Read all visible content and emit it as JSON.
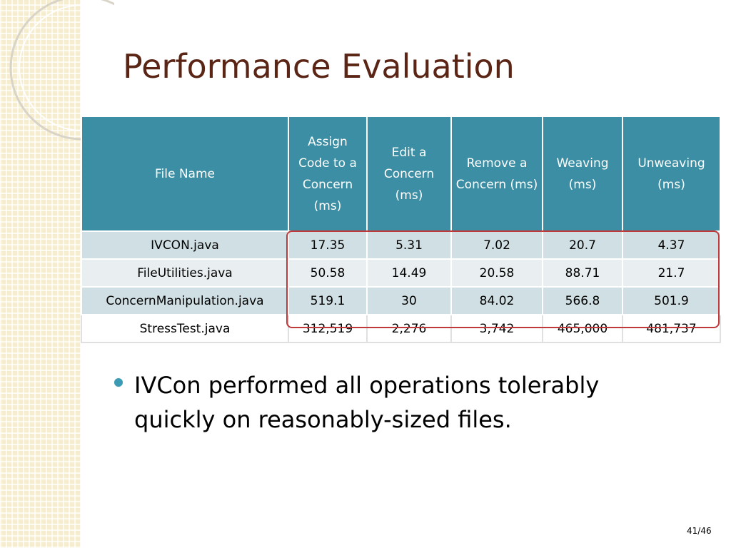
{
  "header": {
    "title": "Performance Evaluation"
  },
  "table": {
    "columns": [
      "File Name",
      "Assign Code to a Concern (ms)",
      "Edit a Concern (ms)",
      "Remove a Concern (ms)",
      "Weaving (ms)",
      "Unweaving (ms)"
    ],
    "rows": [
      [
        "IVCON.java",
        "17.35",
        "5.31",
        "7.02",
        "20.7",
        "4.37"
      ],
      [
        "FileUtilities.java",
        "50.58",
        "14.49",
        "20.58",
        "88.71",
        "21.7"
      ],
      [
        "ConcernManipulation.java",
        "519.1",
        "30",
        "84.02",
        "566.8",
        "501.9"
      ],
      [
        "StressTest.java",
        "312,519",
        "2,276",
        "3,742",
        "465,000",
        "481,737"
      ]
    ]
  },
  "bullets": [
    "IVCon performed all operations tolerably quickly on reasonably-sized files."
  ],
  "footer": {
    "page": "41/46"
  }
}
